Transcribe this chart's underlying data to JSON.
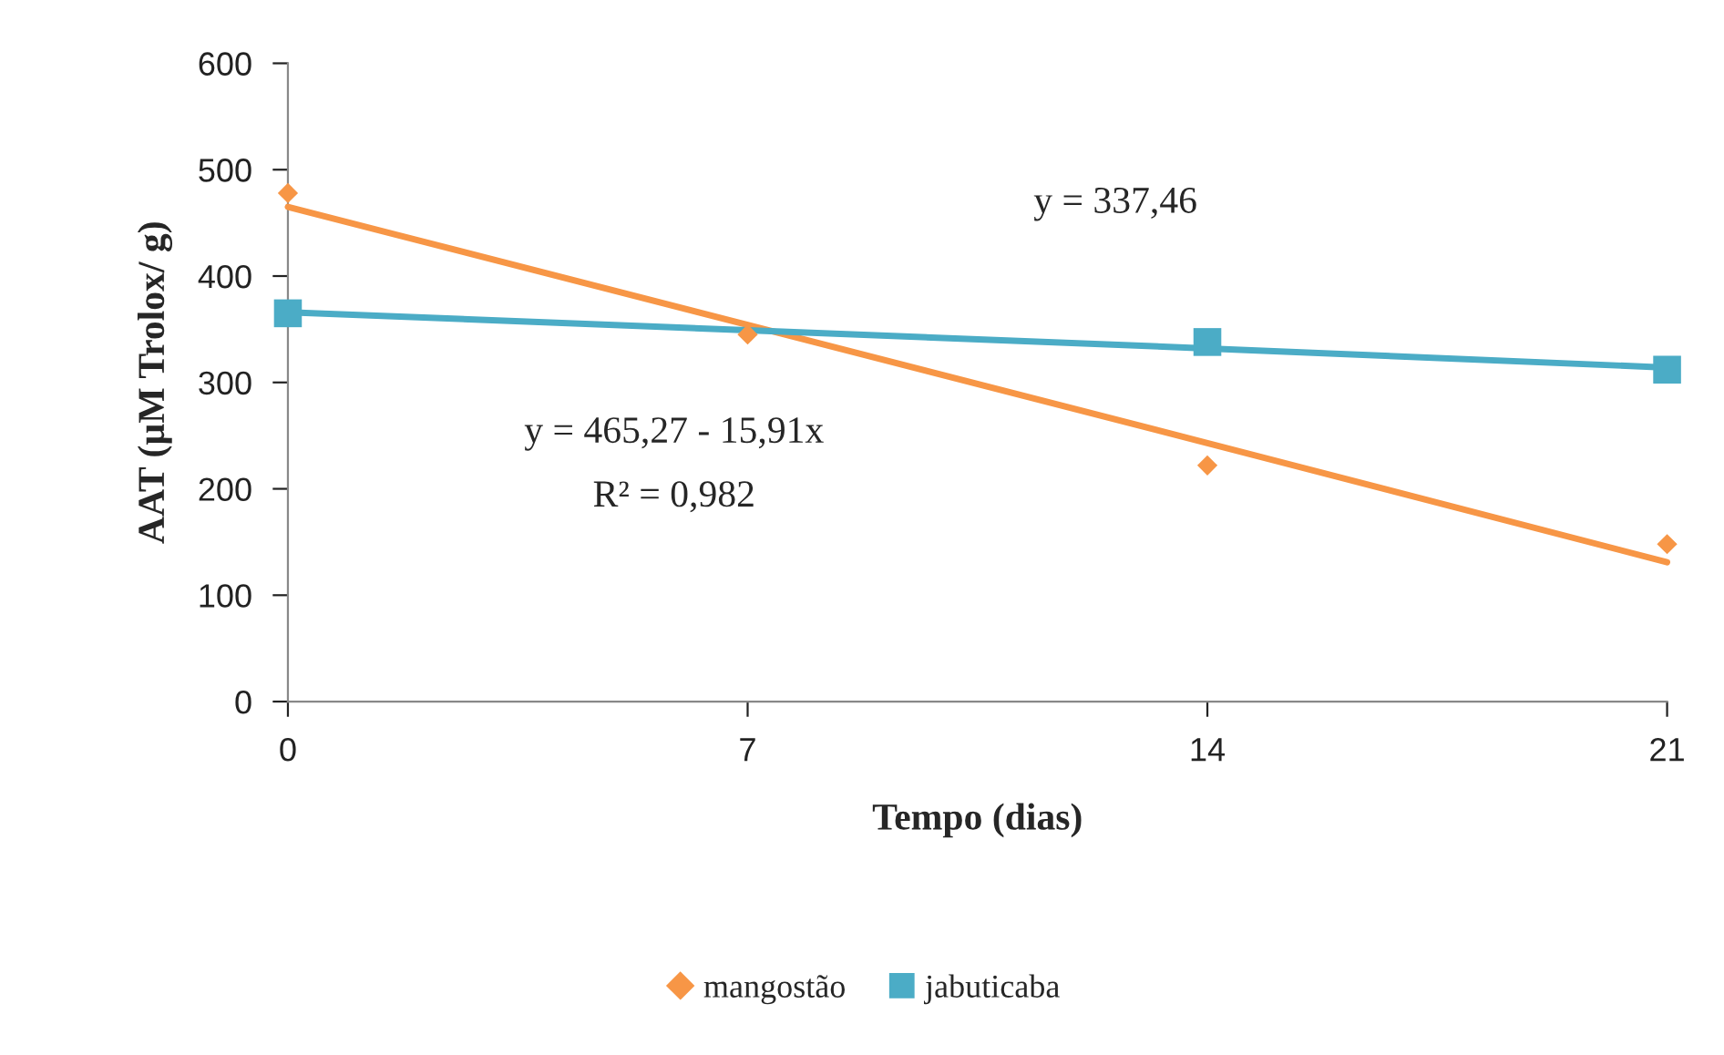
{
  "chart_data": {
    "type": "scatter",
    "xlabel": "Tempo (dias)",
    "ylabel": "AAT (µM Trolox/ g)",
    "x": [
      0,
      7,
      14,
      21
    ],
    "xlim": [
      0,
      21
    ],
    "xticks": [
      0,
      7,
      14,
      21
    ],
    "ylim": [
      0,
      600
    ],
    "yticks": [
      0,
      100,
      200,
      300,
      400,
      500,
      600
    ],
    "grid": false,
    "legend": "bottom",
    "series": [
      {
        "name": "mangostão",
        "color": "#f79646",
        "marker": "diamond",
        "values": [
          478,
          345,
          222,
          148
        ]
      },
      {
        "name": "jabuticaba",
        "color": "#4bacc6",
        "marker": "square",
        "values": [
          365,
          null,
          338,
          312
        ]
      },
      {
        "type": "line",
        "color": "#f79646",
        "marker": "none",
        "values": [
          465,
          354,
          243,
          131
        ]
      },
      {
        "type": "line",
        "color": "#4bacc6",
        "marker": "none",
        "values": [
          366,
          349,
          332,
          314
        ]
      }
    ],
    "annotations": [
      "y = 337,46",
      "y = 465,27 - 15,91x",
      "R² = 0,982"
    ]
  }
}
